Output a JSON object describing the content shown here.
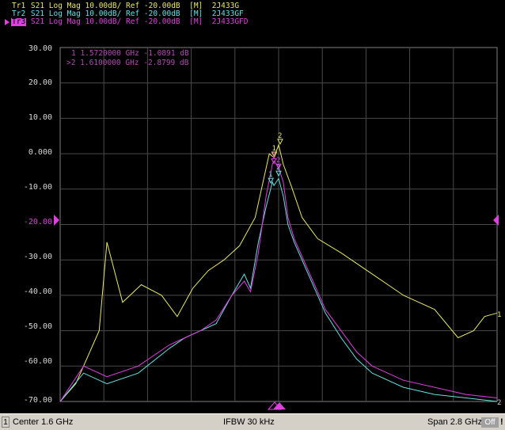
{
  "traces": [
    {
      "id": "Tr1",
      "desc": "S21 Log Mag 10.00dB/ Ref -20.00dB",
      "mode": "[M]",
      "name": "2J433G",
      "color": "#e8e866"
    },
    {
      "id": "Tr2",
      "desc": "S21 Log Mag 10.00dB/ Ref -20.00dB",
      "mode": "[M]",
      "name": "2J433GF",
      "color": "#66e0e0"
    },
    {
      "id": "Tr3",
      "desc": "S21 Log Mag 10.00dB/ Ref -20.00dB",
      "mode": "[M]",
      "name": "2J433GFD",
      "color": "#e040e0"
    }
  ],
  "y_tick_labels": [
    "30.00",
    "20.00",
    "10.00",
    "0.000",
    "-10.00",
    "-20.00",
    "-30.00",
    "-40.00",
    "-50.00",
    "-60.00",
    "-70.00"
  ],
  "markers": [
    {
      "num": "1",
      "freq": "1.5720000 GHz",
      "value": "-1.0891 dB"
    },
    {
      "num": ">2",
      "freq": "1.6100000 GHz",
      "value": "-2.8799 dB"
    }
  ],
  "right_edge_labels": [
    "1",
    "2"
  ],
  "status": {
    "channel": "1",
    "center": "Center 1.6 GHz",
    "ifbw": "IFBW 30 kHz",
    "span": "Span 2.8 GHz",
    "off": "Off",
    "warn": "!"
  },
  "chart_data": {
    "type": "line",
    "xlabel": "",
    "ylabel": "",
    "x_range_ghz": [
      0.2,
      3.0
    ],
    "ylim": [
      -70,
      30
    ],
    "y_units": "dB",
    "grid": true,
    "series": [
      {
        "name": "2J433G",
        "color": "#e8e866",
        "x": [
          0.2,
          0.3,
          0.45,
          0.5,
          0.6,
          0.72,
          0.85,
          0.95,
          1.05,
          1.15,
          1.25,
          1.35,
          1.45,
          1.5,
          1.54,
          1.57,
          1.6,
          1.63,
          1.68,
          1.75,
          1.85,
          2.0,
          2.2,
          2.4,
          2.6,
          2.75,
          2.85,
          2.92,
          3.0
        ],
        "y": [
          -70,
          -65,
          -50,
          -25,
          -42,
          -37,
          -40,
          -46,
          -38,
          -33,
          -30,
          -26,
          -18,
          -8,
          0,
          -1.1,
          2.5,
          -3,
          -9,
          -18,
          -24,
          -28,
          -34,
          -40,
          -44,
          -52,
          -50,
          -46,
          -45
        ]
      },
      {
        "name": "2J433GF",
        "color": "#66e0e0",
        "x": [
          0.2,
          0.35,
          0.5,
          0.7,
          0.9,
          1.0,
          1.1,
          1.2,
          1.3,
          1.38,
          1.42,
          1.47,
          1.52,
          1.56,
          1.57,
          1.6,
          1.63,
          1.66,
          1.7,
          1.8,
          1.9,
          2.0,
          2.1,
          2.2,
          2.4,
          2.6,
          2.8,
          3.0
        ],
        "y": [
          -70,
          -62,
          -65,
          -62,
          -55,
          -52,
          -50,
          -48,
          -40,
          -34,
          -38,
          -25,
          -15,
          -8,
          -9,
          -7,
          -12,
          -20,
          -25,
          -35,
          -45,
          -52,
          -58,
          -62,
          -66,
          -68,
          -69,
          -70
        ]
      },
      {
        "name": "2J433GFD",
        "color": "#e040e0",
        "x": [
          0.2,
          0.35,
          0.5,
          0.7,
          0.9,
          1.0,
          1.1,
          1.2,
          1.3,
          1.38,
          1.42,
          1.47,
          1.52,
          1.56,
          1.57,
          1.6,
          1.63,
          1.66,
          1.7,
          1.8,
          1.9,
          2.0,
          2.1,
          2.2,
          2.4,
          2.6,
          2.8,
          3.0
        ],
        "y": [
          -70,
          -60,
          -63,
          -60,
          -54,
          -52,
          -50,
          -47,
          -40,
          -36,
          -39,
          -28,
          -12,
          -3,
          -2,
          -4,
          -8,
          -18,
          -24,
          -34,
          -44,
          -50,
          -56,
          -60,
          -64,
          -66,
          -68,
          -69
        ]
      }
    ]
  }
}
